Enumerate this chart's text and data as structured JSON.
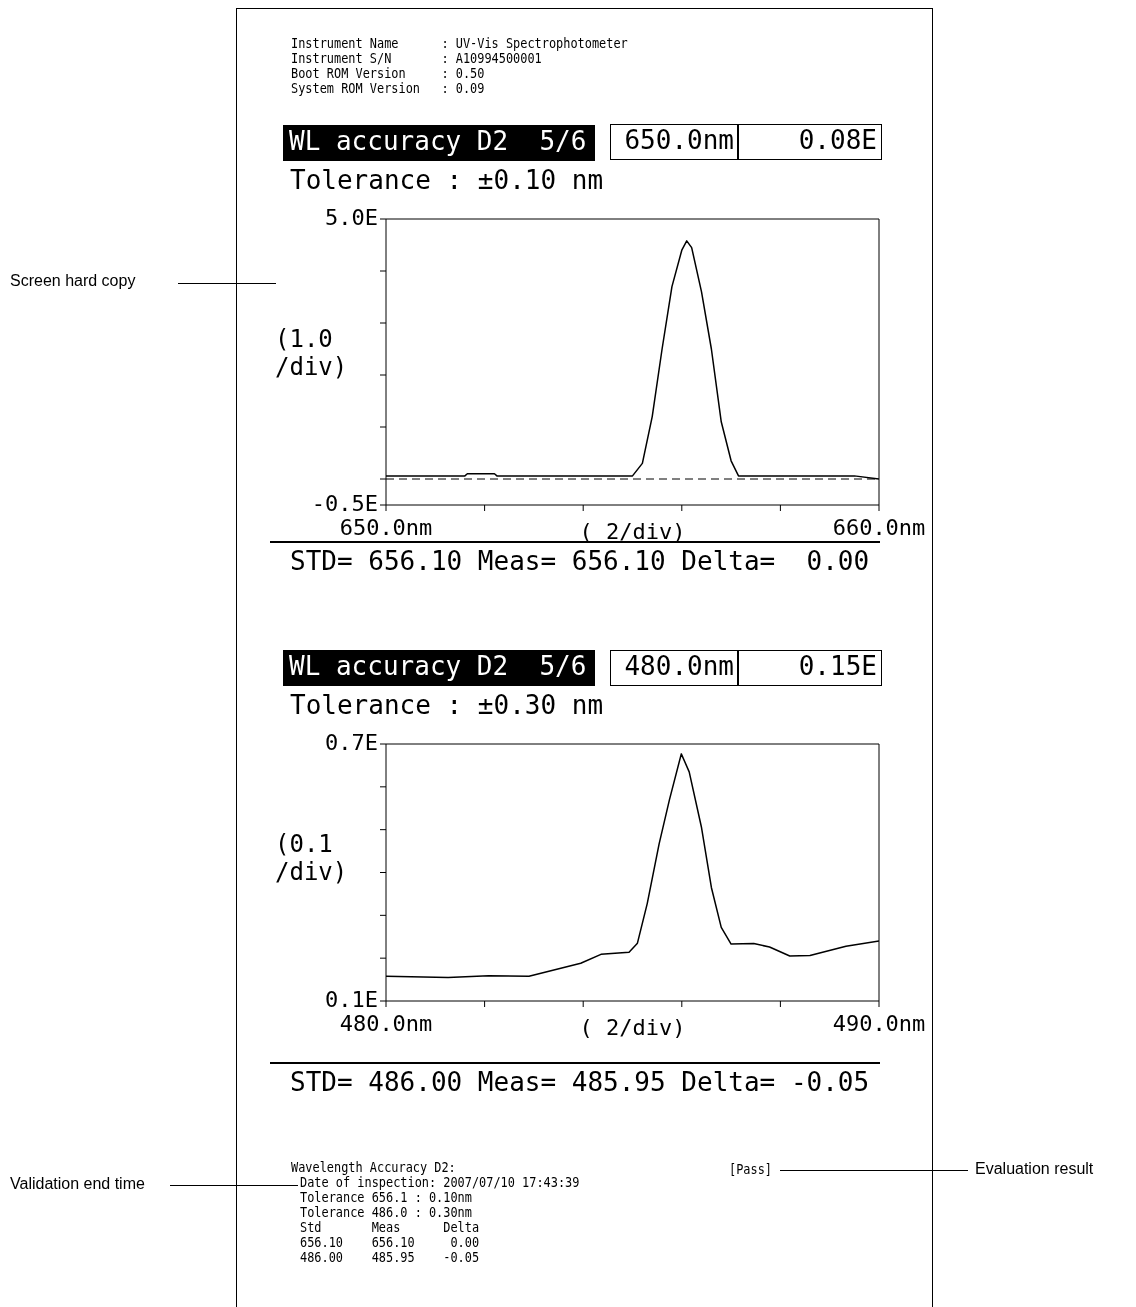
{
  "chart_data": [
    {
      "type": "line",
      "title": "WL accuracy D2  5/6",
      "subtitle": "Tolerance : ±0.10 nm",
      "xlabel": "(    2/div)",
      "ylabel": "(1.0 /div)",
      "x": [
        650,
        651,
        651.6,
        651.65,
        652.2,
        652.25,
        653,
        654,
        655,
        655.2,
        655.4,
        655.6,
        655.8,
        656,
        656.1,
        656.2,
        656.4,
        656.6,
        656.8,
        657,
        657.15,
        658,
        659,
        659.5,
        660
      ],
      "series": [
        {
          "color": "#000000",
          "values": [
            0.06,
            0.06,
            0.06,
            0.1,
            0.1,
            0.06,
            0.06,
            0.06,
            0.06,
            0.3,
            1.2,
            2.5,
            3.7,
            4.4,
            4.58,
            4.45,
            3.6,
            2.5,
            1.1,
            0.35,
            0.06,
            0.06,
            0.06,
            0.06,
            0.0
          ]
        }
      ],
      "xlim": [
        650,
        660
      ],
      "xticks": [
        {
          "value": 650,
          "label": "650.0nm"
        },
        {
          "value": 652,
          "label": null
        },
        {
          "value": 654,
          "label": null
        },
        {
          "value": 656,
          "label": null
        },
        {
          "value": 658,
          "label": null
        },
        {
          "value": 660,
          "label": "660.0nm"
        }
      ],
      "ylim": [
        -0.5,
        5.0
      ],
      "yticks": [
        {
          "value": -0.5,
          "label": "-0.5E"
        },
        {
          "value": 0,
          "label": null
        },
        {
          "value": 1,
          "label": null
        },
        {
          "value": 2,
          "label": null
        },
        {
          "value": 3,
          "label": null
        },
        {
          "value": 4,
          "label": null
        },
        {
          "value": 5,
          "label": "5.0E"
        }
      ],
      "ref_lines": [
        {
          "axis": "y",
          "value": 0,
          "line_style": "dashed"
        }
      ],
      "marker": "none",
      "line_style": "solid",
      "annotations": [
        "Instrument Name      : UV-Vis Spectrophotometer",
        "Instrument S/N       : A10994500001",
        "Boot ROM Version     : 0.50",
        "System ROM Version   : 0.09",
        "650.0nm",
        "0.08E",
        "STD= 656.10 Meas= 656.10 Delta=  0.00",
        "Screen hard copy"
      ]
    },
    {
      "type": "line",
      "title": "WL accuracy D2  5/6",
      "subtitle": "Tolerance : ±0.30 nm",
      "xlabel": "(    2/div)",
      "ylabel": "(0.1 /div)",
      "x": [
        480,
        481.26,
        482.08,
        482.9,
        483.95,
        484.36,
        484.93,
        485.1,
        485.3,
        485.54,
        485.75,
        485.99,
        486.15,
        486.4,
        486.6,
        486.8,
        487.0,
        487.46,
        487.78,
        488.19,
        488.6,
        489.33,
        490
      ],
      "series": [
        {
          "color": "#000000",
          "values": [
            0.158,
            0.155,
            0.159,
            0.158,
            0.188,
            0.209,
            0.214,
            0.235,
            0.328,
            0.467,
            0.57,
            0.677,
            0.635,
            0.505,
            0.365,
            0.272,
            0.233,
            0.234,
            0.226,
            0.205,
            0.206,
            0.228,
            0.24
          ]
        }
      ],
      "xlim": [
        480,
        490
      ],
      "xticks": [
        {
          "value": 480,
          "label": "480.0nm"
        },
        {
          "value": 482,
          "label": null
        },
        {
          "value": 484,
          "label": null
        },
        {
          "value": 486,
          "label": null
        },
        {
          "value": 488,
          "label": null
        },
        {
          "value": 490,
          "label": "490.0nm"
        }
      ],
      "ylim": [
        0.1,
        0.7
      ],
      "yticks": [
        {
          "value": 0.1,
          "label": "0.1E"
        },
        {
          "value": 0.2,
          "label": null
        },
        {
          "value": 0.3,
          "label": null
        },
        {
          "value": 0.4,
          "label": null
        },
        {
          "value": 0.5,
          "label": null
        },
        {
          "value": 0.6,
          "label": null
        },
        {
          "value": 0.7,
          "label": "0.7E"
        }
      ],
      "marker": "none",
      "line_style": "solid",
      "annotations": [
        "480.0nm",
        "0.15E",
        "STD= 486.00 Meas= 485.95 Delta= -0.05",
        "Wavelength Accuracy D2:",
        "Date of inspection: 2007/07/10 17:43:39",
        "Tolerance 656.1 : 0.10nm",
        "Tolerance 486.0 : 0.30nm",
        "Std       Meas      Delta",
        "656.10    656.10     0.00",
        "486.00    485.95    -0.05",
        "[Pass]",
        "Validation end time",
        "Evaluation result"
      ]
    }
  ]
}
